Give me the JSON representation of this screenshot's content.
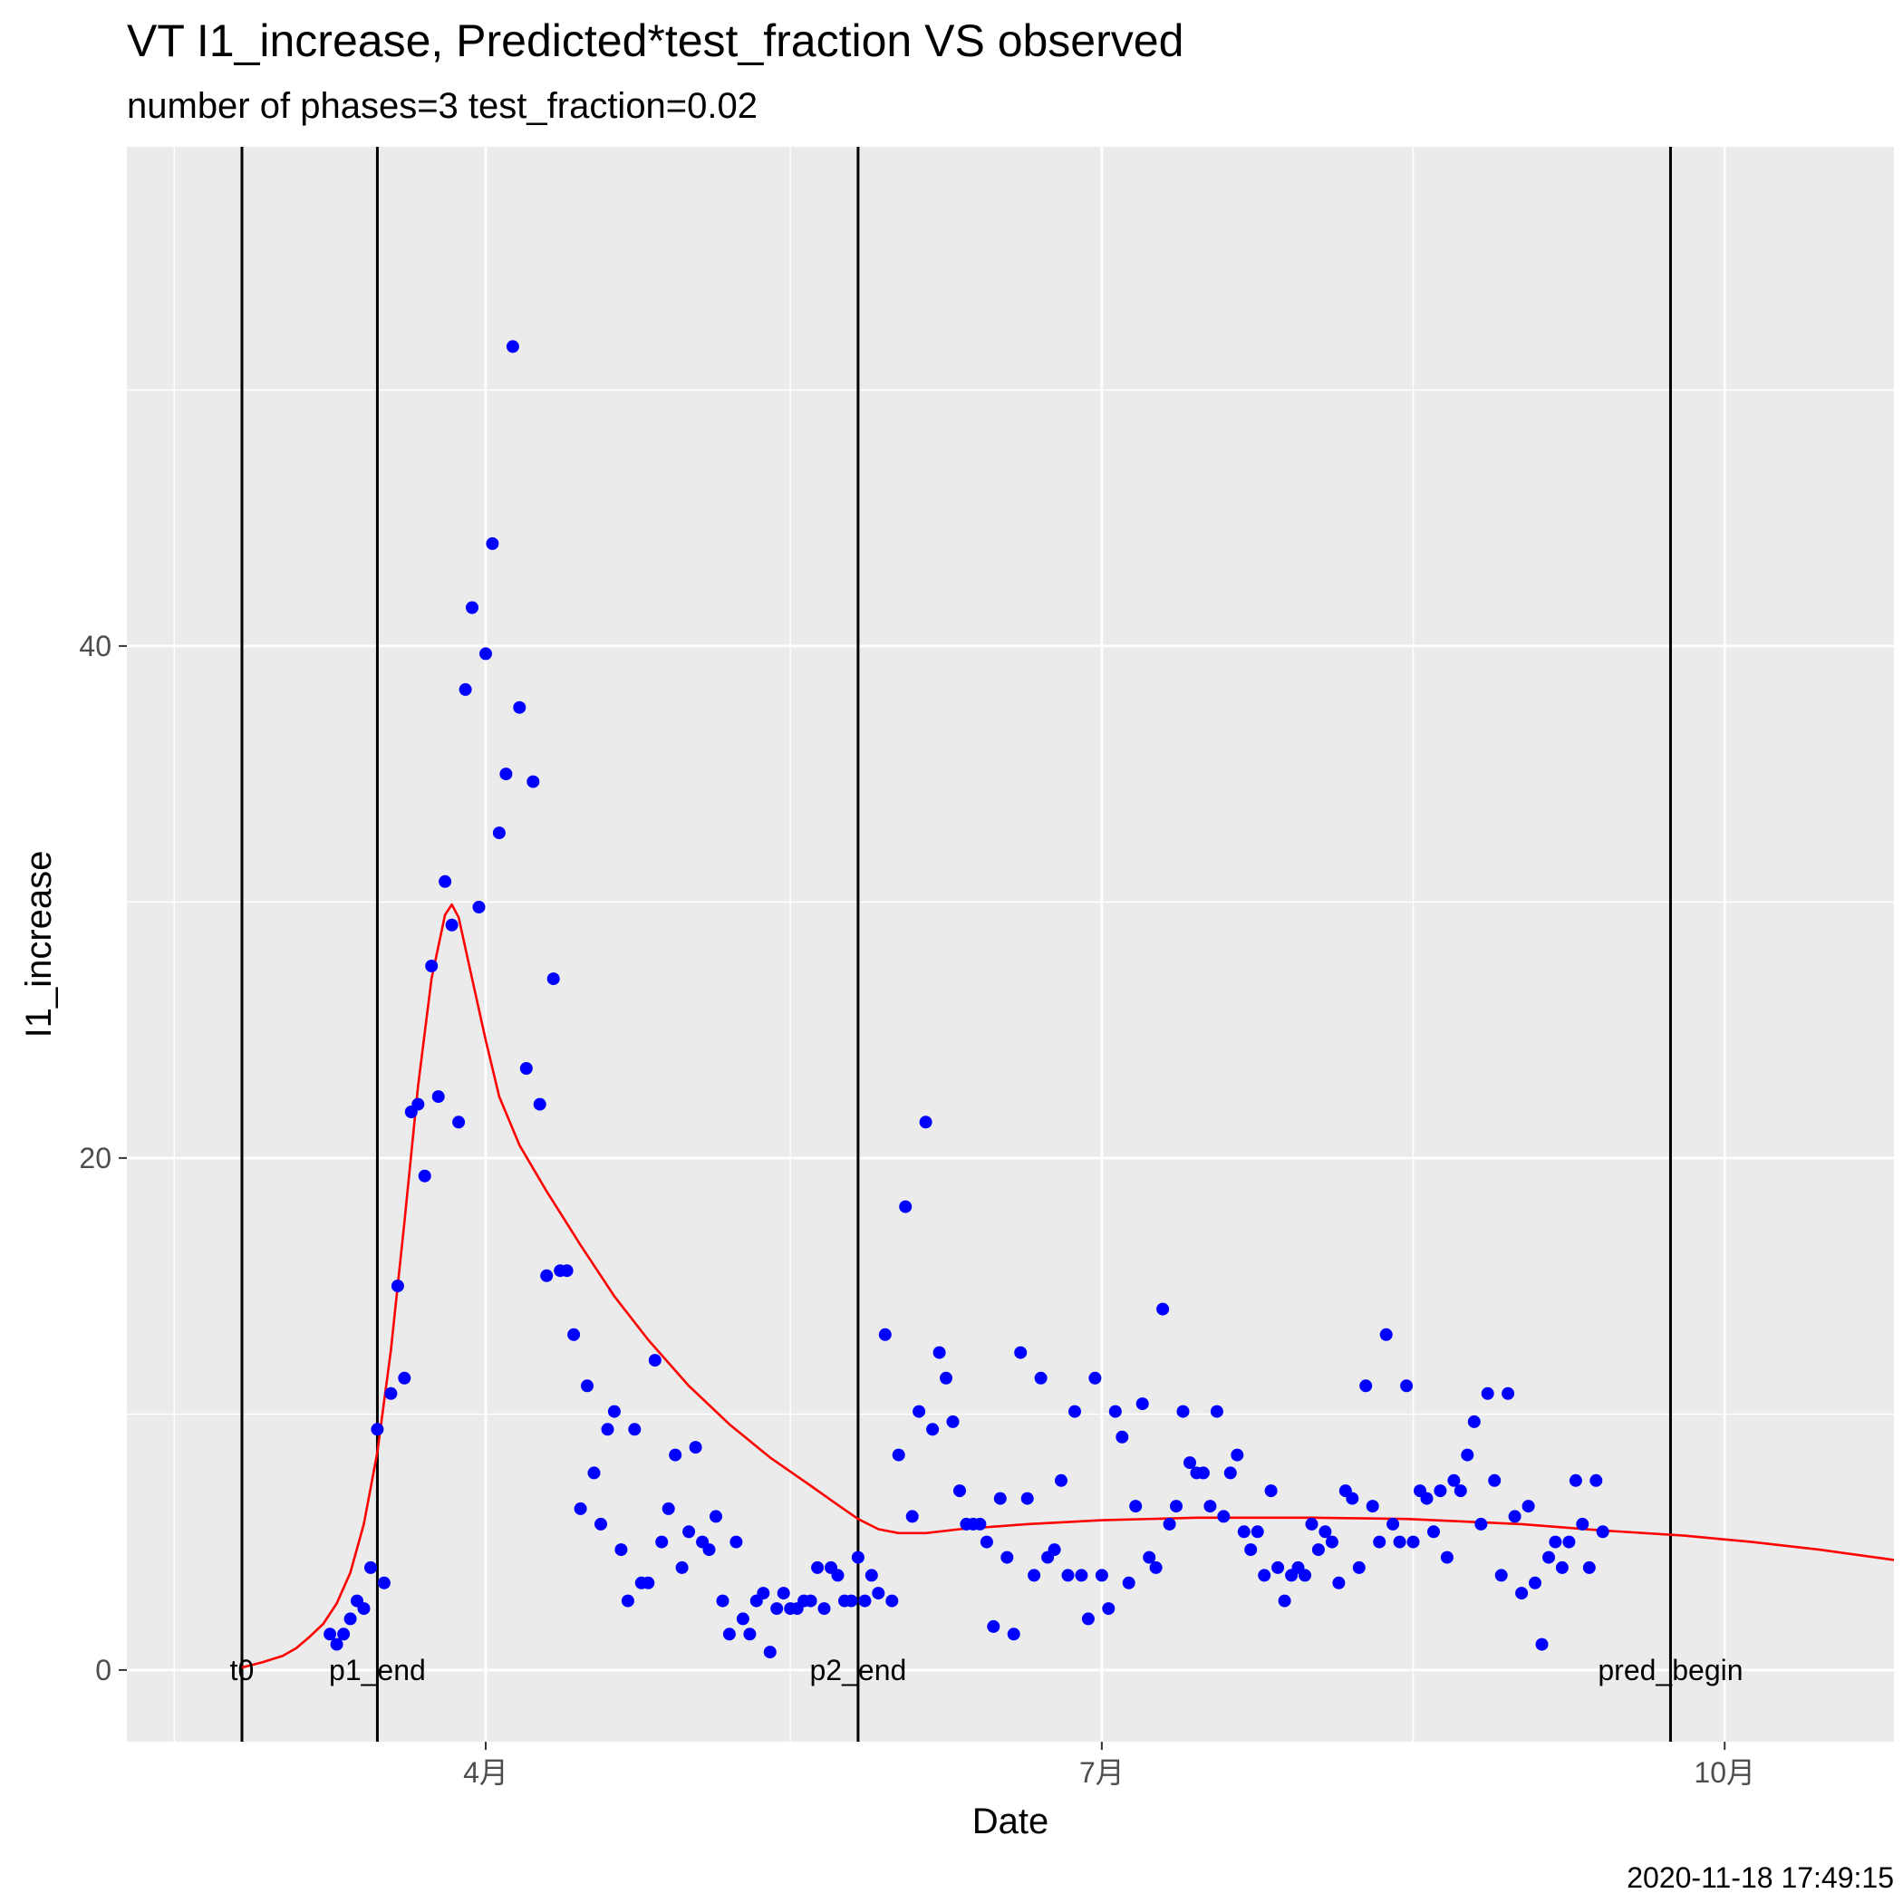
{
  "chart_data": {
    "type": "scatter",
    "title": "VT I1_increase, Predicted*test_fraction VS observed",
    "subtitle": "number of phases=3   test_fraction=0.02",
    "xlabel": "Date",
    "ylabel": "I1_increase",
    "caption": "2020-11-18 17:49:15",
    "x_domain": [
      "2020-02-08",
      "2020-10-26"
    ],
    "ylim": [
      -2.8,
      59.5
    ],
    "grid": true,
    "panel_background": "#ebebeb",
    "x_major_ticks": [
      {
        "date": "2020-04-01",
        "label": "4月"
      },
      {
        "date": "2020-07-01",
        "label": "7月"
      },
      {
        "date": "2020-10-01",
        "label": "10月"
      }
    ],
    "x_minor_breaks": [
      "2020-02-15",
      "2020-05-16",
      "2020-08-16"
    ],
    "y_major_ticks": [
      0,
      20,
      40
    ],
    "y_minor_breaks": [
      10,
      30,
      50
    ],
    "vertical_lines": [
      {
        "date": "2020-02-25",
        "label": "t0"
      },
      {
        "date": "2020-03-16",
        "label": "p1_end"
      },
      {
        "date": "2020-05-26",
        "label": "p2_end"
      },
      {
        "date": "2020-09-23",
        "label": "pred_begin"
      }
    ],
    "series": [
      {
        "kind": "points",
        "color": "#0000ff",
        "points": [
          [
            "2020-03-09",
            1.4
          ],
          [
            "2020-03-10",
            1.0
          ],
          [
            "2020-03-11",
            1.4
          ],
          [
            "2020-03-12",
            2.0
          ],
          [
            "2020-03-13",
            2.7
          ],
          [
            "2020-03-14",
            2.4
          ],
          [
            "2020-03-15",
            4.0
          ],
          [
            "2020-03-16",
            9.4
          ],
          [
            "2020-03-17",
            3.4
          ],
          [
            "2020-03-18",
            10.8
          ],
          [
            "2020-03-19",
            15.0
          ],
          [
            "2020-03-20",
            11.4
          ],
          [
            "2020-03-21",
            21.8
          ],
          [
            "2020-03-22",
            22.1
          ],
          [
            "2020-03-23",
            19.3
          ],
          [
            "2020-03-24",
            27.5
          ],
          [
            "2020-03-25",
            22.4
          ],
          [
            "2020-03-26",
            30.8
          ],
          [
            "2020-03-27",
            29.1
          ],
          [
            "2020-03-28",
            21.4
          ],
          [
            "2020-03-29",
            38.3
          ],
          [
            "2020-03-30",
            41.5
          ],
          [
            "2020-03-31",
            29.8
          ],
          [
            "2020-04-01",
            39.7
          ],
          [
            "2020-04-02",
            44.0
          ],
          [
            "2020-04-03",
            32.7
          ],
          [
            "2020-04-04",
            35.0
          ],
          [
            "2020-04-05",
            51.7
          ],
          [
            "2020-04-06",
            37.6
          ],
          [
            "2020-04-07",
            23.5
          ],
          [
            "2020-04-08",
            34.7
          ],
          [
            "2020-04-09",
            22.1
          ],
          [
            "2020-04-10",
            15.4
          ],
          [
            "2020-04-11",
            27.0
          ],
          [
            "2020-04-12",
            15.6
          ],
          [
            "2020-04-13",
            15.6
          ],
          [
            "2020-04-14",
            13.1
          ],
          [
            "2020-04-15",
            6.3
          ],
          [
            "2020-04-16",
            11.1
          ],
          [
            "2020-04-17",
            7.7
          ],
          [
            "2020-04-18",
            5.7
          ],
          [
            "2020-04-19",
            9.4
          ],
          [
            "2020-04-20",
            10.1
          ],
          [
            "2020-04-21",
            4.7
          ],
          [
            "2020-04-22",
            2.7
          ],
          [
            "2020-04-23",
            9.4
          ],
          [
            "2020-04-24",
            3.4
          ],
          [
            "2020-04-25",
            3.4
          ],
          [
            "2020-04-26",
            12.1
          ],
          [
            "2020-04-27",
            5.0
          ],
          [
            "2020-04-28",
            6.3
          ],
          [
            "2020-04-29",
            8.4
          ],
          [
            "2020-04-30",
            4.0
          ],
          [
            "2020-05-01",
            5.4
          ],
          [
            "2020-05-02",
            8.7
          ],
          [
            "2020-05-03",
            5.0
          ],
          [
            "2020-05-04",
            4.7
          ],
          [
            "2020-05-05",
            6.0
          ],
          [
            "2020-05-06",
            2.7
          ],
          [
            "2020-05-07",
            1.4
          ],
          [
            "2020-05-08",
            5.0
          ],
          [
            "2020-05-09",
            2.0
          ],
          [
            "2020-05-10",
            1.4
          ],
          [
            "2020-05-11",
            2.7
          ],
          [
            "2020-05-12",
            3.0
          ],
          [
            "2020-05-13",
            0.7
          ],
          [
            "2020-05-14",
            2.4
          ],
          [
            "2020-05-15",
            3.0
          ],
          [
            "2020-05-16",
            2.4
          ],
          [
            "2020-05-17",
            2.4
          ],
          [
            "2020-05-18",
            2.7
          ],
          [
            "2020-05-19",
            2.7
          ],
          [
            "2020-05-20",
            4.0
          ],
          [
            "2020-05-21",
            2.4
          ],
          [
            "2020-05-22",
            4.0
          ],
          [
            "2020-05-23",
            3.7
          ],
          [
            "2020-05-24",
            2.7
          ],
          [
            "2020-05-25",
            2.7
          ],
          [
            "2020-05-26",
            4.4
          ],
          [
            "2020-05-27",
            2.7
          ],
          [
            "2020-05-28",
            3.7
          ],
          [
            "2020-05-29",
            3.0
          ],
          [
            "2020-05-30",
            13.1
          ],
          [
            "2020-05-31",
            2.7
          ],
          [
            "2020-06-01",
            8.4
          ],
          [
            "2020-06-02",
            18.1
          ],
          [
            "2020-06-03",
            6.0
          ],
          [
            "2020-06-04",
            10.1
          ],
          [
            "2020-06-05",
            21.4
          ],
          [
            "2020-06-06",
            9.4
          ],
          [
            "2020-06-07",
            12.4
          ],
          [
            "2020-06-08",
            11.4
          ],
          [
            "2020-06-09",
            9.7
          ],
          [
            "2020-06-10",
            7.0
          ],
          [
            "2020-06-11",
            5.7
          ],
          [
            "2020-06-12",
            5.7
          ],
          [
            "2020-06-13",
            5.7
          ],
          [
            "2020-06-14",
            5.0
          ],
          [
            "2020-06-15",
            1.7
          ],
          [
            "2020-06-16",
            6.7
          ],
          [
            "2020-06-17",
            4.4
          ],
          [
            "2020-06-18",
            1.4
          ],
          [
            "2020-06-19",
            12.4
          ],
          [
            "2020-06-20",
            6.7
          ],
          [
            "2020-06-21",
            3.7
          ],
          [
            "2020-06-22",
            11.4
          ],
          [
            "2020-06-23",
            4.4
          ],
          [
            "2020-06-24",
            4.7
          ],
          [
            "2020-06-25",
            7.4
          ],
          [
            "2020-06-26",
            3.7
          ],
          [
            "2020-06-27",
            10.1
          ],
          [
            "2020-06-28",
            3.7
          ],
          [
            "2020-06-29",
            2.0
          ],
          [
            "2020-06-30",
            11.4
          ],
          [
            "2020-07-01",
            3.7
          ],
          [
            "2020-07-02",
            2.4
          ],
          [
            "2020-07-03",
            10.1
          ],
          [
            "2020-07-04",
            9.1
          ],
          [
            "2020-07-05",
            3.4
          ],
          [
            "2020-07-06",
            6.4
          ],
          [
            "2020-07-07",
            10.4
          ],
          [
            "2020-07-08",
            4.4
          ],
          [
            "2020-07-09",
            4.0
          ],
          [
            "2020-07-10",
            14.1
          ],
          [
            "2020-07-11",
            5.7
          ],
          [
            "2020-07-12",
            6.4
          ],
          [
            "2020-07-13",
            10.1
          ],
          [
            "2020-07-14",
            8.1
          ],
          [
            "2020-07-15",
            7.7
          ],
          [
            "2020-07-16",
            7.7
          ],
          [
            "2020-07-17",
            6.4
          ],
          [
            "2020-07-18",
            10.1
          ],
          [
            "2020-07-19",
            6.0
          ],
          [
            "2020-07-20",
            7.7
          ],
          [
            "2020-07-21",
            8.4
          ],
          [
            "2020-07-22",
            5.4
          ],
          [
            "2020-07-23",
            4.7
          ],
          [
            "2020-07-24",
            5.4
          ],
          [
            "2020-07-25",
            3.7
          ],
          [
            "2020-07-26",
            7.0
          ],
          [
            "2020-07-27",
            4.0
          ],
          [
            "2020-07-28",
            2.7
          ],
          [
            "2020-07-29",
            3.7
          ],
          [
            "2020-07-30",
            4.0
          ],
          [
            "2020-07-31",
            3.7
          ],
          [
            "2020-08-01",
            5.7
          ],
          [
            "2020-08-02",
            4.7
          ],
          [
            "2020-08-03",
            5.4
          ],
          [
            "2020-08-04",
            5.0
          ],
          [
            "2020-08-05",
            3.4
          ],
          [
            "2020-08-06",
            7.0
          ],
          [
            "2020-08-07",
            6.7
          ],
          [
            "2020-08-08",
            4.0
          ],
          [
            "2020-08-09",
            11.1
          ],
          [
            "2020-08-10",
            6.4
          ],
          [
            "2020-08-11",
            5.0
          ],
          [
            "2020-08-12",
            13.1
          ],
          [
            "2020-08-13",
            5.7
          ],
          [
            "2020-08-14",
            5.0
          ],
          [
            "2020-08-15",
            11.1
          ],
          [
            "2020-08-16",
            5.0
          ],
          [
            "2020-08-17",
            7.0
          ],
          [
            "2020-08-18",
            6.7
          ],
          [
            "2020-08-19",
            5.4
          ],
          [
            "2020-08-20",
            7.0
          ],
          [
            "2020-08-21",
            4.4
          ],
          [
            "2020-08-22",
            7.4
          ],
          [
            "2020-08-23",
            7.0
          ],
          [
            "2020-08-24",
            8.4
          ],
          [
            "2020-08-25",
            9.7
          ],
          [
            "2020-08-26",
            5.7
          ],
          [
            "2020-08-27",
            10.8
          ],
          [
            "2020-08-28",
            7.4
          ],
          [
            "2020-08-29",
            3.7
          ],
          [
            "2020-08-30",
            10.8
          ],
          [
            "2020-08-31",
            6.0
          ],
          [
            "2020-09-01",
            3.0
          ],
          [
            "2020-09-02",
            6.4
          ],
          [
            "2020-09-03",
            3.4
          ],
          [
            "2020-09-04",
            1.0
          ],
          [
            "2020-09-05",
            4.4
          ],
          [
            "2020-09-06",
            5.0
          ],
          [
            "2020-09-07",
            4.0
          ],
          [
            "2020-09-08",
            5.0
          ],
          [
            "2020-09-09",
            7.4
          ],
          [
            "2020-09-10",
            5.7
          ],
          [
            "2020-09-11",
            4.0
          ],
          [
            "2020-09-12",
            7.4
          ],
          [
            "2020-09-13",
            5.4
          ]
        ]
      },
      {
        "kind": "line",
        "color": "#ff0000",
        "points": [
          [
            "2020-02-25",
            0.1
          ],
          [
            "2020-02-28",
            0.3
          ],
          [
            "2020-03-02",
            0.55
          ],
          [
            "2020-03-04",
            0.85
          ],
          [
            "2020-03-06",
            1.3
          ],
          [
            "2020-03-08",
            1.8
          ],
          [
            "2020-03-10",
            2.6
          ],
          [
            "2020-03-12",
            3.8
          ],
          [
            "2020-03-14",
            5.7
          ],
          [
            "2020-03-16",
            8.5
          ],
          [
            "2020-03-18",
            12.5
          ],
          [
            "2020-03-20",
            17.5
          ],
          [
            "2020-03-22",
            22.8
          ],
          [
            "2020-03-24",
            27.0
          ],
          [
            "2020-03-26",
            29.5
          ],
          [
            "2020-03-27",
            29.9
          ],
          [
            "2020-03-28",
            29.4
          ],
          [
            "2020-03-30",
            27.0
          ],
          [
            "2020-04-01",
            24.6
          ],
          [
            "2020-04-03",
            22.4
          ],
          [
            "2020-04-06",
            20.5
          ],
          [
            "2020-04-10",
            18.7
          ],
          [
            "2020-04-15",
            16.6
          ],
          [
            "2020-04-20",
            14.6
          ],
          [
            "2020-04-25",
            12.9
          ],
          [
            "2020-05-01",
            11.1
          ],
          [
            "2020-05-07",
            9.6
          ],
          [
            "2020-05-13",
            8.3
          ],
          [
            "2020-05-19",
            7.2
          ],
          [
            "2020-05-23",
            6.45
          ],
          [
            "2020-05-26",
            5.9
          ],
          [
            "2020-05-29",
            5.5
          ],
          [
            "2020-06-01",
            5.35
          ],
          [
            "2020-06-05",
            5.35
          ],
          [
            "2020-06-10",
            5.5
          ],
          [
            "2020-06-20",
            5.7
          ],
          [
            "2020-07-01",
            5.85
          ],
          [
            "2020-07-15",
            5.95
          ],
          [
            "2020-08-01",
            5.95
          ],
          [
            "2020-08-15",
            5.9
          ],
          [
            "2020-09-01",
            5.7
          ],
          [
            "2020-09-13",
            5.45
          ],
          [
            "2020-09-25",
            5.25
          ],
          [
            "2020-10-05",
            5.0
          ],
          [
            "2020-10-15",
            4.7
          ],
          [
            "2020-10-26",
            4.3
          ]
        ]
      }
    ]
  }
}
